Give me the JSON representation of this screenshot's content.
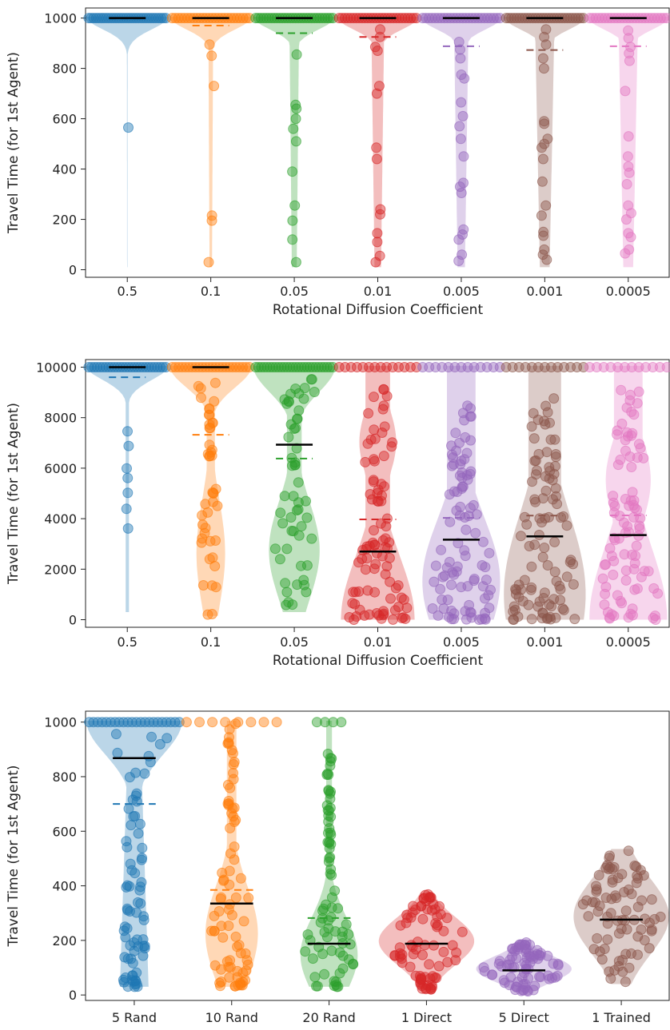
{
  "chart_data": [
    {
      "type": "violin",
      "xlabel": "Rotational Diffusion Coefficient",
      "ylabel": "Travel Time (for 1st Agent)",
      "ylim": [
        -30,
        1040
      ],
      "yticks": [
        0,
        200,
        400,
        600,
        800,
        1000
      ],
      "categories": [
        "0.5",
        "0.1",
        "0.05",
        "0.01",
        "0.005",
        "0.001",
        "0.0005"
      ],
      "colors": [
        "#1f77b4",
        "#ff7f0e",
        "#2ca02c",
        "#d62728",
        "#9467bd",
        "#8c564b",
        "#e377c2"
      ],
      "median": [
        1000,
        1000,
        1000,
        1000,
        1000,
        1000,
        1000
      ],
      "mean": [
        996,
        970,
        940,
        925,
        888,
        873,
        888
      ],
      "outliers": [
        [
          565
        ],
        [
          895,
          850,
          730,
          215,
          195,
          30
        ],
        [
          855,
          655,
          640,
          600,
          560,
          510,
          390,
          255,
          195,
          120,
          30
        ],
        [
          955,
          925,
          885,
          870,
          730,
          700,
          485,
          440,
          240,
          220,
          145,
          110,
          55,
          30
        ],
        [
          905,
          875,
          840,
          775,
          760,
          665,
          610,
          570,
          520,
          450,
          345,
          330,
          305,
          160,
          140,
          120,
          60,
          35
        ],
        [
          955,
          925,
          895,
          840,
          800,
          590,
          580,
          520,
          500,
          485,
          440,
          350,
          255,
          215,
          150,
          135,
          80,
          60,
          40
        ],
        [
          950,
          920,
          885,
          860,
          830,
          710,
          530,
          450,
          410,
          385,
          340,
          255,
          225,
          200,
          145,
          130,
          80,
          65
        ]
      ],
      "top_cluster_count": [
        32,
        26,
        30,
        28,
        26,
        30,
        26
      ]
    },
    {
      "type": "violin",
      "xlabel": "Rotational Diffusion Coefficient",
      "ylabel": "Travel Time (for 1st Agent)",
      "ylim": [
        -300,
        10300
      ],
      "yticks": [
        0,
        2000,
        4000,
        6000,
        8000,
        10000
      ],
      "categories": [
        "0.5",
        "0.1",
        "0.05",
        "0.01",
        "0.005",
        "0.001",
        "0.0005"
      ],
      "colors": [
        "#1f77b4",
        "#ff7f0e",
        "#2ca02c",
        "#d62728",
        "#9467bd",
        "#8c564b",
        "#e377c2"
      ],
      "median": [
        10000,
        10000,
        6930,
        2700,
        3170,
        3300,
        3350
      ],
      "mean": [
        9600,
        7320,
        6380,
        3970,
        4030,
        4120,
        4130
      ],
      "low_range": [
        [
          300,
          8600
        ],
        [
          150,
          9400
        ],
        [
          300,
          9600
        ],
        [
          0,
          9400
        ],
        [
          0,
          8500
        ],
        [
          0,
          9400
        ],
        [
          0,
          9500
        ]
      ],
      "low_count": [
        7,
        45,
        55,
        90,
        95,
        100,
        90
      ],
      "top_cluster_count": [
        28,
        24,
        28,
        14,
        13,
        13,
        12
      ]
    },
    {
      "type": "violin",
      "xlabel": "",
      "ylabel": "Travel Time (for 1st Agent)",
      "ylim": [
        -20,
        1040
      ],
      "yticks": [
        0,
        200,
        400,
        600,
        800,
        1000
      ],
      "categories": [
        "5 Rand",
        "10 Rand",
        "20 Rand",
        "1 Direct",
        "5 Direct",
        "1 Trained"
      ],
      "colors": [
        "#1f77b4",
        "#ff7f0e",
        "#2ca02c",
        "#d62728",
        "#9467bd",
        "#8c564b"
      ],
      "median": [
        868,
        335,
        188,
        188,
        90,
        276
      ],
      "mean": [
        700,
        385,
        282,
        188,
        90,
        276
      ],
      "value_range": [
        [
          30,
          1000
        ],
        [
          30,
          1000
        ],
        [
          30,
          1000
        ],
        [
          20,
          370
        ],
        [
          10,
          195
        ],
        [
          40,
          530
        ]
      ],
      "point_count": [
        75,
        80,
        80,
        80,
        80,
        80
      ]
    }
  ]
}
